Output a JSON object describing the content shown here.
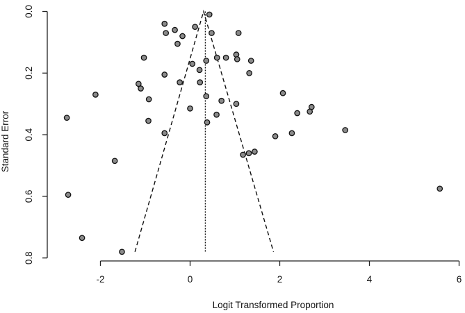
{
  "chart_data": {
    "type": "scatter",
    "title": "",
    "xlabel": "Logit Transformed Proportion",
    "ylabel": "Standard Error",
    "xlim": [
      -3.1,
      6.1
    ],
    "ylim": [
      0.0,
      0.8
    ],
    "y_inverted": true,
    "x_ticks": [
      -2,
      0,
      2,
      4,
      6
    ],
    "x_tick_labels": [
      "-2",
      "0",
      "2",
      "4",
      "6"
    ],
    "y_ticks": [
      0.0,
      0.2,
      0.4,
      0.6,
      0.8
    ],
    "y_tick_labels": [
      "0.0",
      "0.2",
      "0.4",
      "0.6",
      "0.8"
    ],
    "grid": false,
    "pooled_estimate": 0.34,
    "funnel": {
      "apex": [
        0.3,
        0.0
      ],
      "left_end": [
        -1.23,
        0.78
      ],
      "right_end": [
        1.86,
        0.78
      ]
    },
    "points": [
      {
        "x": 0.43,
        "y": 0.01
      },
      {
        "x": -0.57,
        "y": 0.04
      },
      {
        "x": 0.11,
        "y": 0.05
      },
      {
        "x": -0.34,
        "y": 0.06
      },
      {
        "x": -0.54,
        "y": 0.07
      },
      {
        "x": -0.17,
        "y": 0.08
      },
      {
        "x": 0.48,
        "y": 0.07
      },
      {
        "x": 1.08,
        "y": 0.07
      },
      {
        "x": -0.28,
        "y": 0.105
      },
      {
        "x": 1.03,
        "y": 0.14
      },
      {
        "x": -1.03,
        "y": 0.15
      },
      {
        "x": 0.6,
        "y": 0.15
      },
      {
        "x": 0.8,
        "y": 0.15
      },
      {
        "x": 1.05,
        "y": 0.155
      },
      {
        "x": 0.36,
        "y": 0.16
      },
      {
        "x": 1.36,
        "y": 0.16
      },
      {
        "x": 0.05,
        "y": 0.17
      },
      {
        "x": 0.21,
        "y": 0.19
      },
      {
        "x": 1.32,
        "y": 0.2
      },
      {
        "x": -0.57,
        "y": 0.205
      },
      {
        "x": -1.15,
        "y": 0.235
      },
      {
        "x": -0.23,
        "y": 0.23
      },
      {
        "x": 0.22,
        "y": 0.23
      },
      {
        "x": -1.1,
        "y": 0.25
      },
      {
        "x": -2.11,
        "y": 0.27
      },
      {
        "x": 2.07,
        "y": 0.265
      },
      {
        "x": 0.36,
        "y": 0.275
      },
      {
        "x": -0.92,
        "y": 0.285
      },
      {
        "x": 0.7,
        "y": 0.29
      },
      {
        "x": 1.03,
        "y": 0.3
      },
      {
        "x": 2.71,
        "y": 0.31
      },
      {
        "x": 0.0,
        "y": 0.315
      },
      {
        "x": 2.67,
        "y": 0.325
      },
      {
        "x": 2.39,
        "y": 0.33
      },
      {
        "x": 0.59,
        "y": 0.335
      },
      {
        "x": -2.75,
        "y": 0.345
      },
      {
        "x": -0.93,
        "y": 0.355
      },
      {
        "x": 0.38,
        "y": 0.36
      },
      {
        "x": 3.46,
        "y": 0.385
      },
      {
        "x": -0.57,
        "y": 0.395
      },
      {
        "x": 2.27,
        "y": 0.395
      },
      {
        "x": 1.9,
        "y": 0.405
      },
      {
        "x": 1.44,
        "y": 0.455
      },
      {
        "x": 1.31,
        "y": 0.46
      },
      {
        "x": 1.18,
        "y": 0.465
      },
      {
        "x": -1.68,
        "y": 0.485
      },
      {
        "x": 5.57,
        "y": 0.575
      },
      {
        "x": -2.72,
        "y": 0.595
      },
      {
        "x": -2.41,
        "y": 0.735
      },
      {
        "x": -1.52,
        "y": 0.78
      }
    ]
  }
}
